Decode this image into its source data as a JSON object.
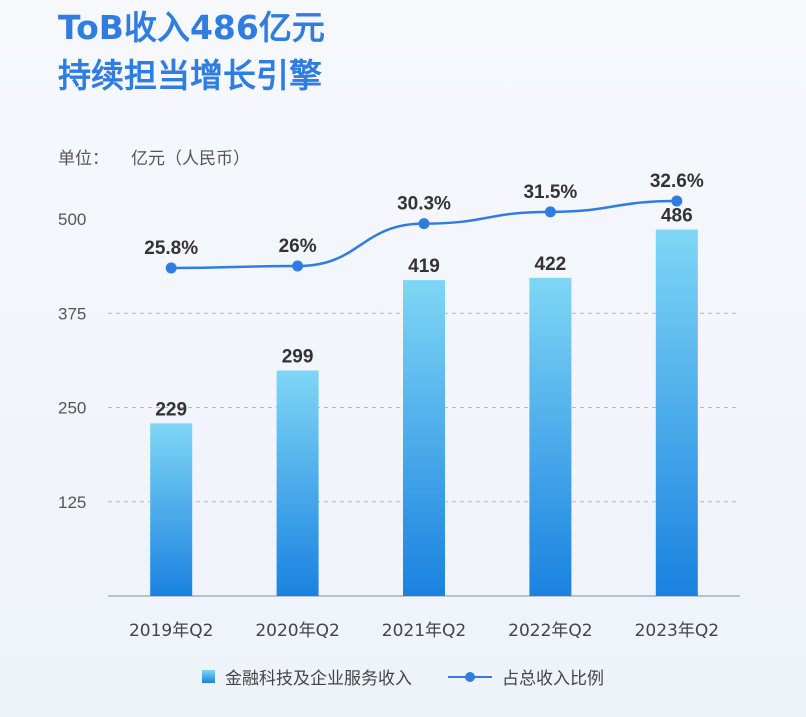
{
  "header": {
    "title_line1": "ToB收入486亿元",
    "title_line2": "持续担当增长引擎"
  },
  "unit": {
    "label": "单位：",
    "value": "亿元（人民币）"
  },
  "chart_data": {
    "type": "bar",
    "categories": [
      "2019年Q2",
      "2020年Q2",
      "2021年Q2",
      "2022年Q2",
      "2023年Q2"
    ],
    "series": [
      {
        "name": "金融科技及企业服务收入",
        "type": "bar",
        "values": [
          229,
          299,
          419,
          422,
          486
        ],
        "labels": [
          "229",
          "299",
          "419",
          "422",
          "486"
        ]
      },
      {
        "name": "占总收入比例",
        "type": "line",
        "values": [
          25.8,
          26,
          30.3,
          31.5,
          32.6
        ],
        "labels": [
          "25.8%",
          "26%",
          "30.3%",
          "31.5%",
          "32.6%"
        ]
      }
    ],
    "y_ticks": [
      125,
      250,
      375,
      500
    ],
    "y_tick_labels": [
      "125",
      "250",
      "375",
      "500"
    ],
    "ylim": [
      0,
      500
    ],
    "grid": "dashed horizontal",
    "legend_position": "bottom-center",
    "colors": {
      "bar_top": "#7fd6f5",
      "bar_bottom": "#1a82e0",
      "line": "#2f7de0"
    }
  }
}
